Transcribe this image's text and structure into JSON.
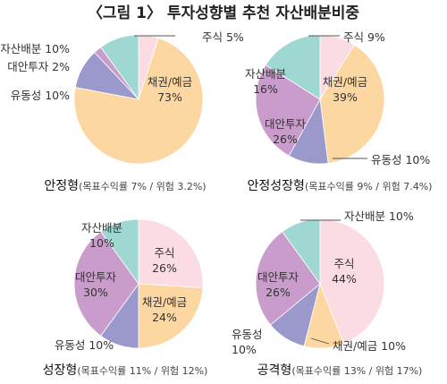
{
  "title": "〈그림 1〉 투자성향별 추천 자산배분비중",
  "colors": {
    "주식": "#fbdce3",
    "채권/예금": "#fdd7a2",
    "유동성": "#9b98cc",
    "대안투자": "#c99ccb",
    "자산배분": "#9fd8d2"
  },
  "chart_data": [
    {
      "type": "pie",
      "name": "안정형",
      "caption": "(목표수익률 7% / 위험 3.2%)",
      "slices": [
        {
          "label": "주식",
          "value": 5
        },
        {
          "label": "채권/예금",
          "value": 73
        },
        {
          "label": "유동성",
          "value": 10
        },
        {
          "label": "대안투자",
          "value": 2
        },
        {
          "label": "자산배분",
          "value": 10
        }
      ]
    },
    {
      "type": "pie",
      "name": "안정성장형",
      "caption": "(목표수익률 9% / 위험 7.4%)",
      "slices": [
        {
          "label": "주식",
          "value": 9
        },
        {
          "label": "채권/예금",
          "value": 39
        },
        {
          "label": "유동성",
          "value": 10
        },
        {
          "label": "대안투자",
          "value": 26
        },
        {
          "label": "자산배분",
          "value": 16
        }
      ]
    },
    {
      "type": "pie",
      "name": "성장형",
      "caption": "(목표수익률 11% / 위험 12%)",
      "slices": [
        {
          "label": "주식",
          "value": 26
        },
        {
          "label": "채권/예금",
          "value": 24
        },
        {
          "label": "유동성",
          "value": 10
        },
        {
          "label": "대안투자",
          "value": 30
        },
        {
          "label": "자산배분",
          "value": 10
        }
      ]
    },
    {
      "type": "pie",
      "name": "공격형",
      "caption": "(목표수익률 13% / 위험 17%)",
      "slices": [
        {
          "label": "주식",
          "value": 44
        },
        {
          "label": "채권/예금",
          "value": 10
        },
        {
          "label": "유동성",
          "value": 10
        },
        {
          "label": "대안투자",
          "value": 26
        },
        {
          "label": "자산배분",
          "value": 10
        }
      ]
    }
  ]
}
